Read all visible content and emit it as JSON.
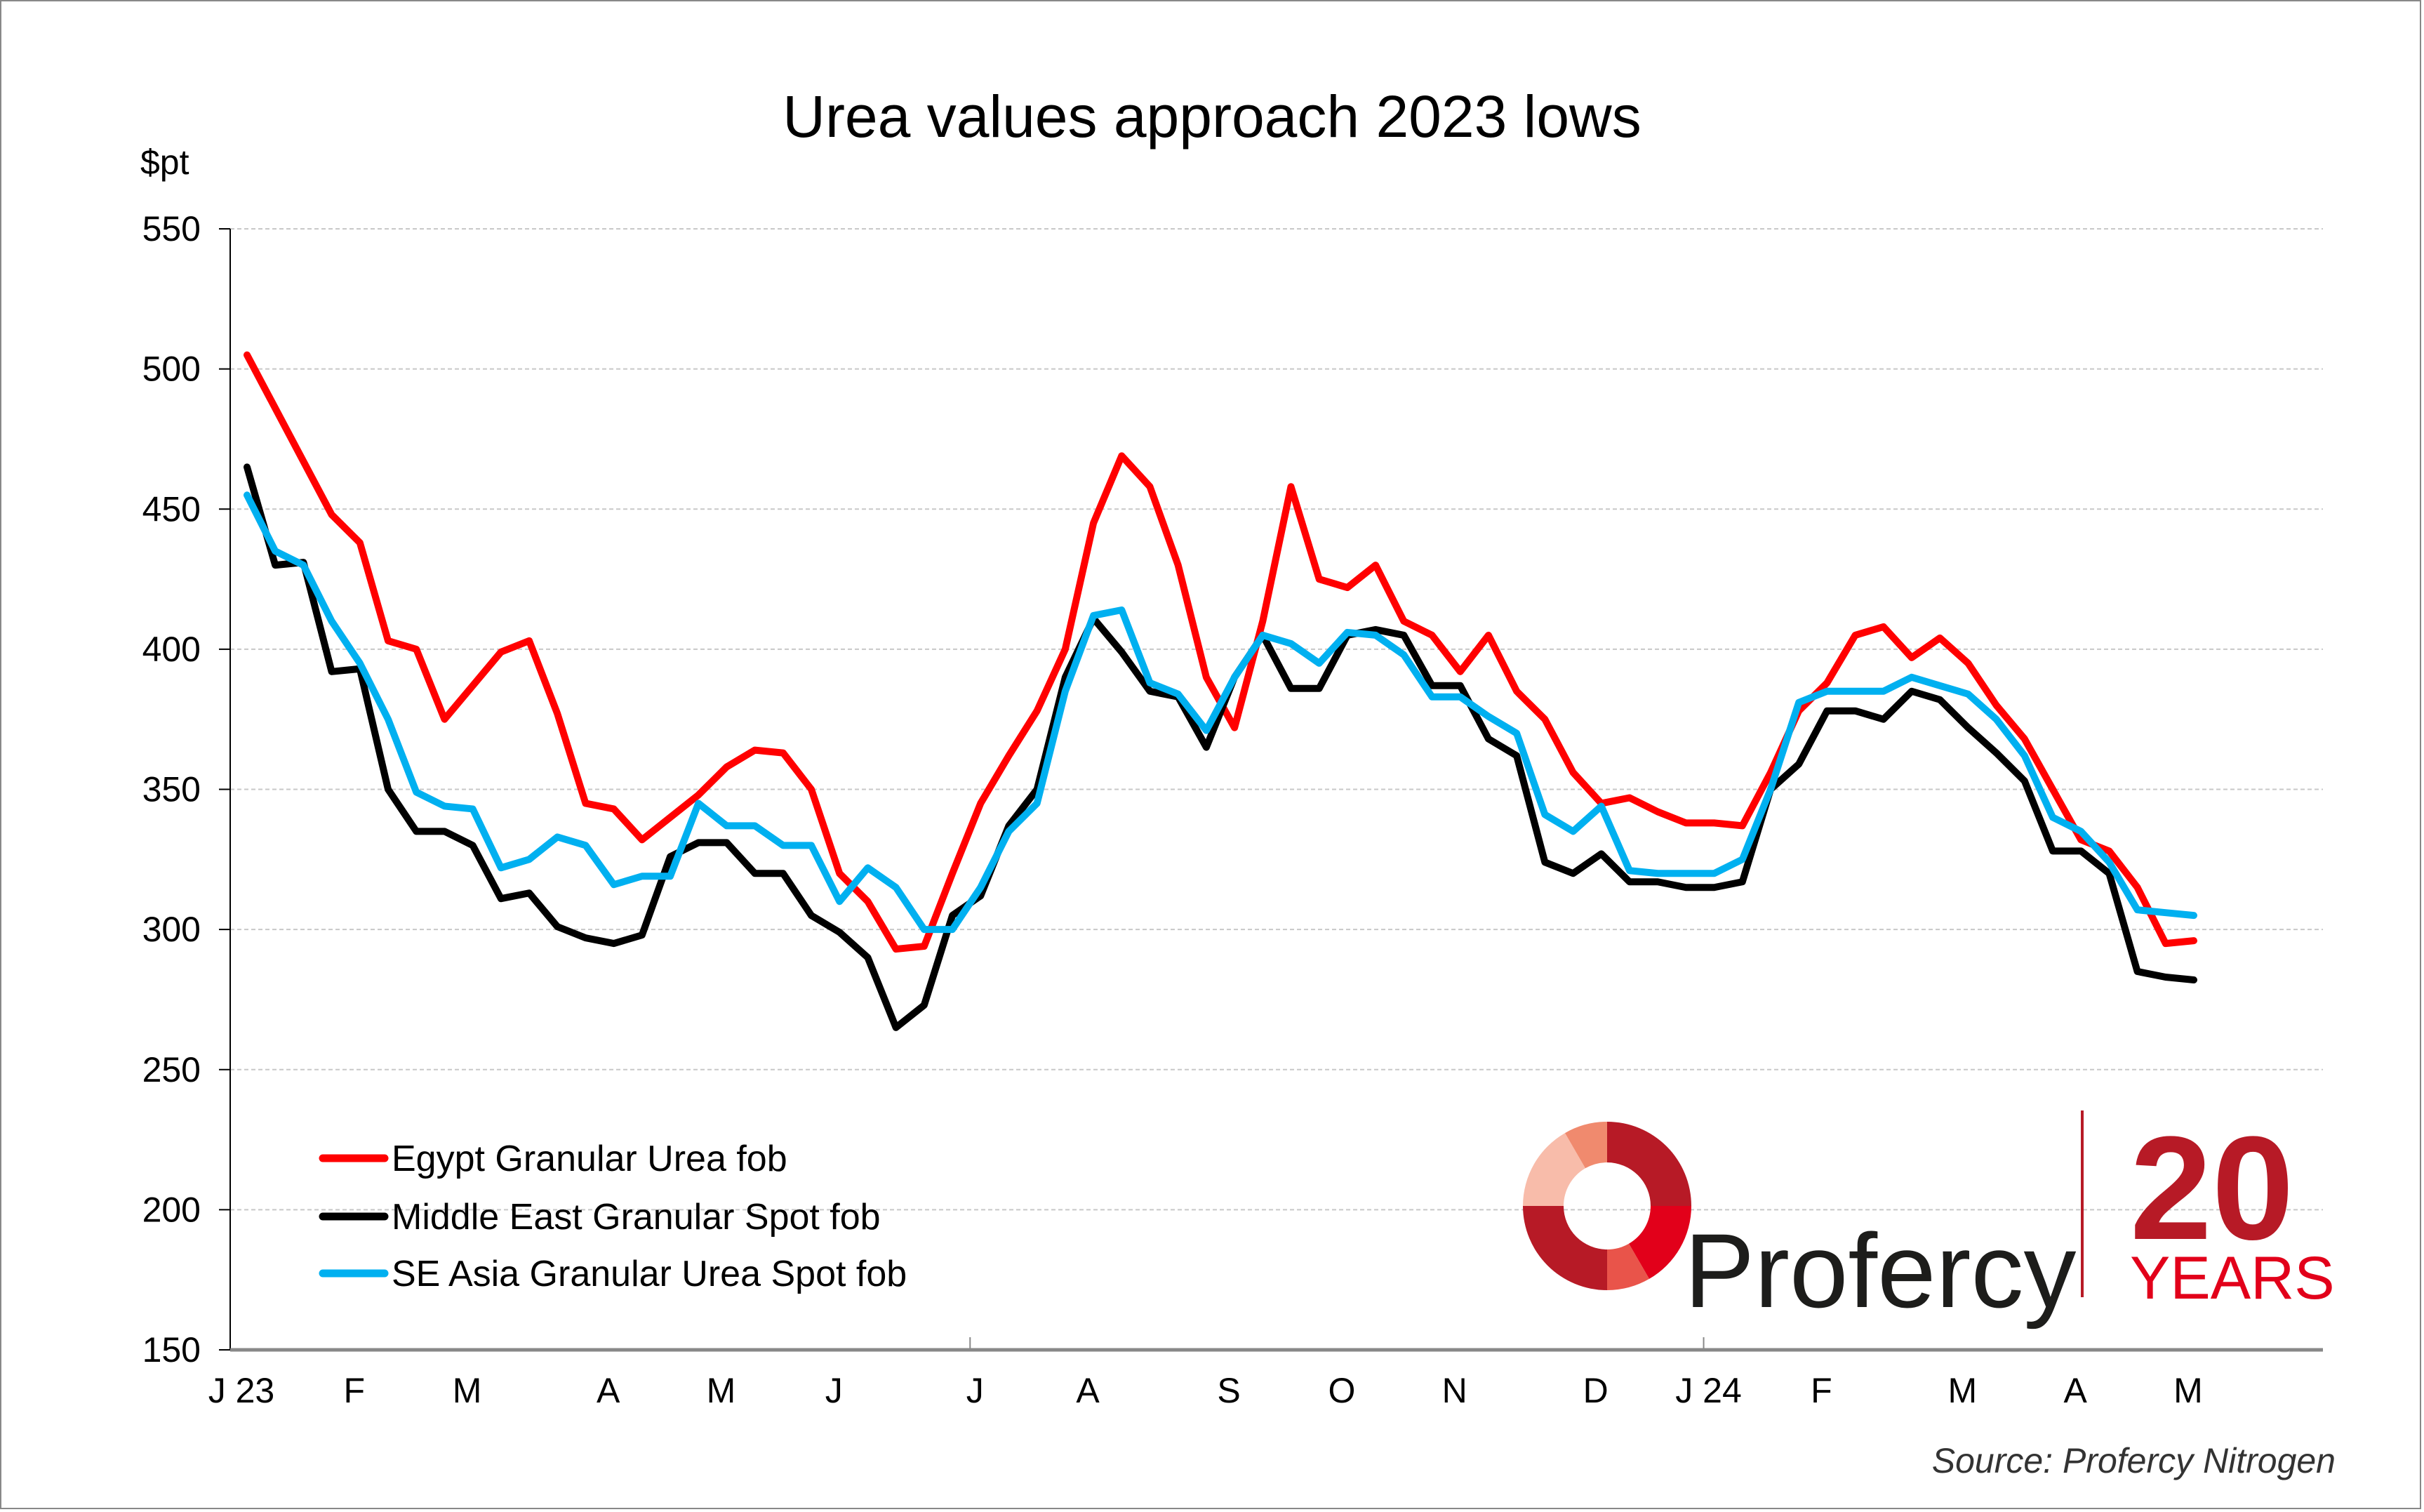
{
  "chart_data": {
    "type": "line",
    "title": "Urea values approach 2023 lows",
    "ylabel": "$pt",
    "xlabel": "",
    "ylim": [
      150,
      550
    ],
    "yticks": [
      150,
      200,
      250,
      300,
      350,
      400,
      450,
      500,
      550
    ],
    "ytick_labels": [
      "150",
      "200",
      "250",
      "300",
      "350",
      "400",
      "450",
      "500",
      "550"
    ],
    "grid": true,
    "x_frequency": "weekly",
    "x_start": "January 2023",
    "x_end": "May 2024",
    "xtick_labels": [
      "J 23",
      "F",
      "M",
      "A",
      "M",
      "J",
      "J",
      "A",
      "S",
      "O",
      "N",
      "D",
      "J 24",
      "F",
      "M",
      "A",
      "M"
    ],
    "xtick_positions": [
      0,
      4,
      8,
      13,
      17,
      21,
      26,
      30,
      35,
      39,
      43,
      48,
      52,
      56,
      61,
      65,
      69
    ],
    "legend_position": "bottom-left",
    "series": [
      {
        "name": "Egypt Granular Urea fob",
        "color": "#ff0000",
        "values": [
          505,
          486,
          467,
          448,
          438,
          403,
          400,
          375,
          387,
          399,
          403,
          377,
          345,
          343,
          332,
          340,
          348,
          358,
          364,
          363,
          350,
          320,
          310,
          293,
          294,
          320,
          345,
          362,
          378,
          400,
          445,
          469,
          458,
          430,
          390,
          372,
          410,
          458,
          425,
          422,
          430,
          410,
          405,
          392,
          405,
          385,
          375,
          356,
          345,
          347,
          342,
          338,
          338,
          337,
          356,
          378,
          388,
          405,
          408,
          397,
          404,
          395,
          380,
          368,
          350,
          332,
          328,
          315,
          295,
          296
        ]
      },
      {
        "name": "Middle East Granular Spot fob",
        "color": "#000000",
        "values": [
          465,
          430,
          431,
          392,
          393,
          350,
          335,
          335,
          330,
          311,
          313,
          301,
          297,
          295,
          298,
          326,
          331,
          331,
          320,
          320,
          305,
          299,
          290,
          265,
          273,
          305,
          312,
          337,
          350,
          390,
          411,
          399,
          385,
          383,
          365,
          390,
          405,
          386,
          386,
          405,
          407,
          405,
          387,
          387,
          368,
          362,
          324,
          320,
          327,
          317,
          317,
          315,
          315,
          317,
          350,
          359,
          378,
          378,
          375,
          385,
          382,
          372,
          363,
          353,
          328,
          328,
          320,
          285,
          283,
          282
        ]
      },
      {
        "name": "SE Asia Granular Urea Spot fob",
        "color": "#00b0f0",
        "values": [
          455,
          435,
          430,
          410,
          395,
          375,
          349,
          344,
          343,
          322,
          325,
          333,
          330,
          316,
          319,
          319,
          345,
          337,
          337,
          330,
          330,
          310,
          322,
          315,
          300,
          300,
          315,
          335,
          345,
          385,
          412,
          414,
          388,
          384,
          371,
          390,
          405,
          402,
          395,
          406,
          405,
          398,
          383,
          383,
          376,
          370,
          341,
          335,
          344,
          321,
          320,
          320,
          320,
          325,
          350,
          381,
          385,
          385,
          385,
          390,
          387,
          384,
          375,
          362,
          340,
          335,
          324,
          307,
          306,
          305
        ]
      }
    ],
    "source": "Source: Profercy Nitrogen"
  },
  "logo": {
    "brand": "Profercy",
    "anniversary_number": "20",
    "anniversary_label": "YEARS",
    "colors": {
      "dark_red": "#b71a26",
      "bright_red": "#e2001a",
      "coral": "#e9544a",
      "salmon": "#f08a6e",
      "peach": "#f8bcaa"
    }
  }
}
